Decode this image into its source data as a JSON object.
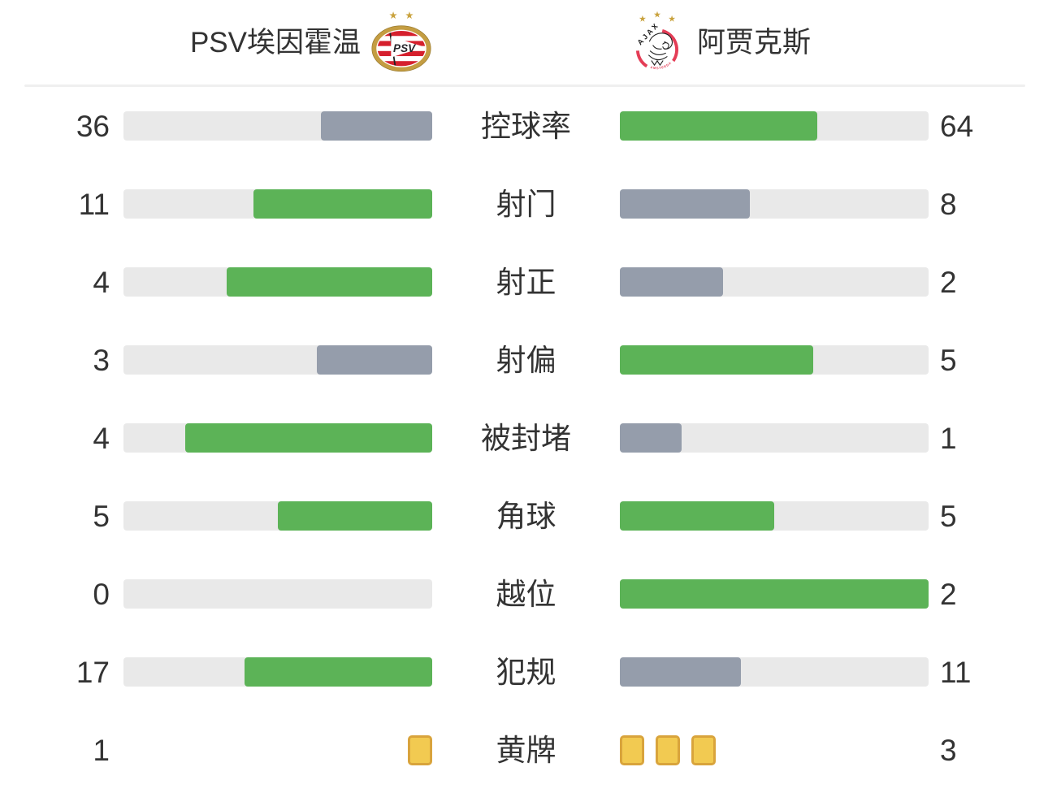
{
  "colors": {
    "win_bar": "#5cb357",
    "lose_bar": "#959dab",
    "track": "#e9e9e9",
    "divider": "#efefef",
    "text": "#333333",
    "card_fill": "#f2ca51",
    "card_border": "#d9a43c",
    "psv_red": "#d5202d",
    "psv_gold": "#c49d42",
    "star_gold": "#c9a23d",
    "ajax_red": "#e43d56"
  },
  "header": {
    "home_team": {
      "name": "PSV埃因霍温",
      "logo_icon": "psv-crest",
      "logo_text": "PSV"
    },
    "away_team": {
      "name": "阿贾克斯",
      "logo_icon": "ajax-crest",
      "logo_text": "AJAX",
      "logo_subtext": "AMSTERDAM"
    }
  },
  "stats": [
    {
      "label": "控球率",
      "home": 36,
      "away": 64,
      "display": "bar"
    },
    {
      "label": "射门",
      "home": 11,
      "away": 8,
      "display": "bar"
    },
    {
      "label": "射正",
      "home": 4,
      "away": 2,
      "display": "bar"
    },
    {
      "label": "射偏",
      "home": 3,
      "away": 5,
      "display": "bar"
    },
    {
      "label": "被封堵",
      "home": 4,
      "away": 1,
      "display": "bar"
    },
    {
      "label": "角球",
      "home": 5,
      "away": 5,
      "display": "bar"
    },
    {
      "label": "越位",
      "home": 0,
      "away": 2,
      "display": "bar"
    },
    {
      "label": "犯规",
      "home": 17,
      "away": 11,
      "display": "bar"
    },
    {
      "label": "黄牌",
      "home": 1,
      "away": 3,
      "display": "cards"
    }
  ],
  "chart_data": {
    "type": "bar",
    "orientation": "horizontal-paired",
    "categories": [
      "控球率",
      "射门",
      "射正",
      "射偏",
      "被封堵",
      "角球",
      "越位",
      "犯规",
      "黄牌"
    ],
    "series": [
      {
        "name": "PSV埃因霍温",
        "values": [
          36,
          11,
          4,
          3,
          4,
          5,
          0,
          17,
          1
        ]
      },
      {
        "name": "阿贾克斯",
        "values": [
          64,
          8,
          2,
          5,
          1,
          5,
          2,
          11,
          3
        ]
      }
    ],
    "title": "",
    "xlabel": "",
    "ylabel": "",
    "legend_position": "top",
    "grid": false,
    "notes": "Each pair of bars fills value/(home+away) of its track, growing toward the center label; green marks the higher value (ties both green), slate-gray the lower; the 黄牌 row uses yellow-card icons (1 vs 3) instead of bars."
  }
}
